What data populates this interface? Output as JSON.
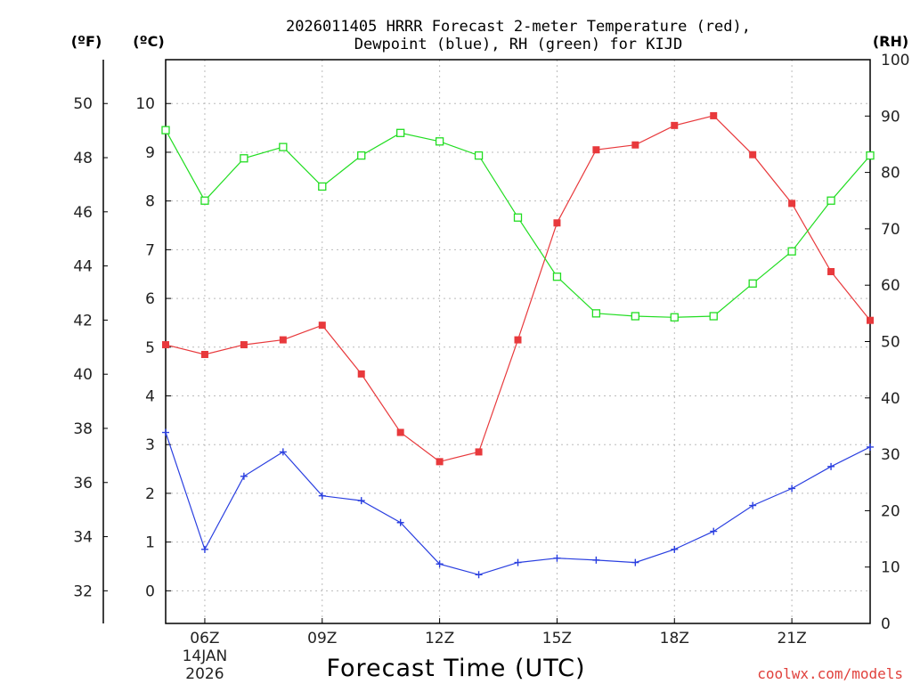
{
  "chart_data": {
    "type": "line",
    "title_line1": "2026011405 HRRR Forecast 2-meter Temperature (red),",
    "title_line2": "Dewpoint (blue), RH (green) for KIJD",
    "xlabel": "Forecast Time (UTC)",
    "credit": "coolwx.com/models",
    "unit_f": "(ºF)",
    "unit_c": "(ºC)",
    "unit_rh": "(RH)",
    "x": [
      5,
      6,
      7,
      8,
      9,
      10,
      11,
      12,
      13,
      14,
      15,
      16,
      17,
      18,
      19,
      20,
      21,
      22,
      23
    ],
    "xlim": [
      5,
      23
    ],
    "x_ticks": [
      {
        "x": 6,
        "label": "06Z",
        "sub1": "14JAN",
        "sub2": "2026"
      },
      {
        "x": 9,
        "label": "09Z"
      },
      {
        "x": 12,
        "label": "12Z"
      },
      {
        "x": 15,
        "label": "15Z"
      },
      {
        "x": 18,
        "label": "18Z"
      },
      {
        "x": 21,
        "label": "21Z"
      }
    ],
    "ylim_c": [
      -0.67,
      10.9
    ],
    "y_ticks_c": [
      "0",
      "1",
      "2",
      "3",
      "4",
      "5",
      "6",
      "7",
      "8",
      "9",
      "10"
    ],
    "y_ticks_f": [
      "32",
      "34",
      "36",
      "38",
      "40",
      "42",
      "44",
      "46",
      "48",
      "50"
    ],
    "ylim_rh": [
      0,
      100
    ],
    "y_ticks_rh": [
      "0",
      "10",
      "20",
      "30",
      "40",
      "50",
      "60",
      "70",
      "80",
      "90",
      "100"
    ],
    "series": [
      {
        "name": "Temperature",
        "axis": "c",
        "color": "#e8393c",
        "marker": "filled-square",
        "values": [
          5.05,
          4.85,
          5.05,
          5.15,
          5.45,
          4.45,
          3.25,
          2.65,
          2.85,
          5.15,
          7.55,
          9.05,
          9.15,
          9.55,
          9.75,
          8.95,
          7.95,
          6.55,
          5.55
        ]
      },
      {
        "name": "Dewpoint",
        "axis": "c",
        "color": "#2a3fe0",
        "marker": "plus",
        "values": [
          3.25,
          0.85,
          2.35,
          2.85,
          1.95,
          1.85,
          1.4,
          0.55,
          0.33,
          0.58,
          0.67,
          0.63,
          0.58,
          0.85,
          1.22,
          1.75,
          2.1,
          2.55,
          2.95
        ]
      },
      {
        "name": "RH",
        "axis": "rh",
        "color": "#22dd22",
        "marker": "open-square",
        "values": [
          87.5,
          75,
          82.5,
          84.5,
          77.5,
          83,
          87,
          85.5,
          83,
          72,
          61.5,
          55,
          54.5,
          54.3,
          54.5,
          60.3,
          66,
          75,
          83
        ]
      }
    ],
    "grid": true
  }
}
